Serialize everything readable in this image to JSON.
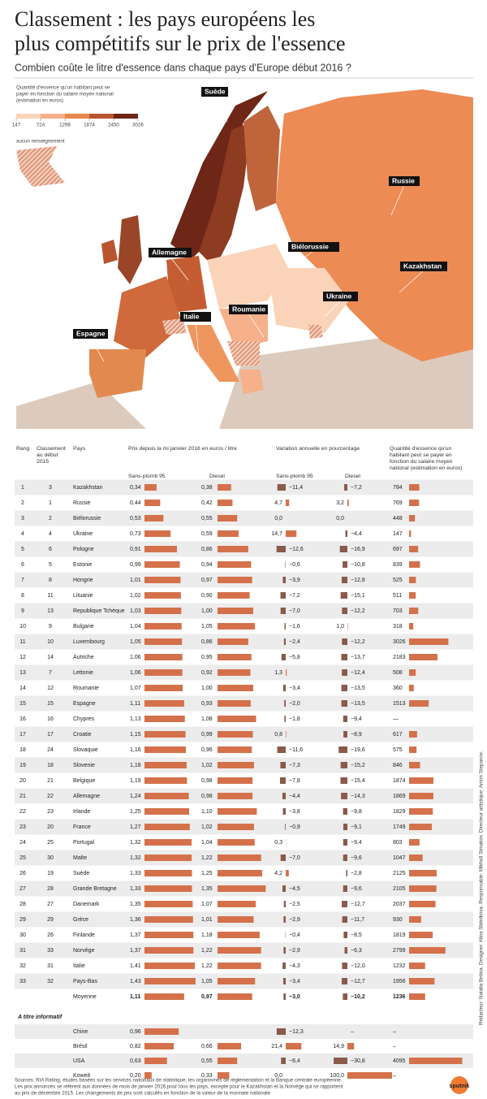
{
  "header": {
    "title": [
      "Classement : les pays européens les",
      "plus compétitifs sur le prix de l'essence"
    ],
    "subtitle": "Combien coûte le litre d'essence dans chaque pays d'Europe début 2016 ?"
  },
  "map": {
    "legend_title": [
      "Quantité d'essence qu'un habitant peut se",
      "payer en fonction du salaire moyen national",
      "(estimation en euros)"
    ],
    "legend_ticks": [
      147,
      724,
      1298,
      1874,
      2450,
      3026
    ],
    "legend_colors": [
      "#fbd3b8",
      "#f6b08a",
      "#e9874f",
      "#b8552e",
      "#6e2617"
    ],
    "no_data": "aucun renseignement",
    "labels": [
      "Suède",
      "Russie",
      "Biélorussie",
      "Allemagne",
      "Kazakhstan",
      "Ukraine",
      "Italie",
      "Roumanie",
      "Espagne"
    ]
  },
  "table": {
    "headers": {
      "rank": [
        "Rang"
      ],
      "rank_2015": [
        "Classement",
        "au début",
        "2015"
      ],
      "country": [
        "Pays"
      ],
      "price": [
        "Prix depuis la mi janvier 2016 en euros / litre"
      ],
      "price_petrol": "Sans-plomb 95",
      "price_diesel": "Diesel",
      "variation": [
        "Variation annuelle en pourcentage"
      ],
      "var_petrol": "Sans-plomb 95",
      "var_diesel": "Diesel",
      "quantity": [
        "Quantité d'essence qu'un",
        "habitant peut se payer en",
        "fonction du salaire moyen",
        "national (estimation en euros)"
      ]
    },
    "bar_color": "#d4714a",
    "rows": [
      {
        "rank": 1,
        "rank_2015": 3,
        "country": "Kazakhstan",
        "values": [
          0.34,
          0.38,
          -11.4,
          -7.2,
          784
        ],
        "value_labels": [
          "0,34",
          "0,38",
          "−11,4",
          "−7,2",
          "784"
        ]
      },
      {
        "rank": 2,
        "rank_2015": 1,
        "country": "Russie",
        "values": [
          0.44,
          0.42,
          4.7,
          3.2,
          769
        ],
        "value_labels": [
          "0,44",
          "0,42",
          "4,7",
          "3,2",
          "769"
        ]
      },
      {
        "rank": 3,
        "rank_2015": 2,
        "country": "Biélorussie",
        "values": [
          0.53,
          0.55,
          0.0,
          0.0,
          448
        ],
        "value_labels": [
          "0,53",
          "0,55",
          "0,0",
          "0,0",
          "448"
        ]
      },
      {
        "rank": 4,
        "rank_2015": 4,
        "country": "Ukraine",
        "values": [
          0.73,
          0.59,
          14.7,
          -4.4,
          147
        ],
        "value_labels": [
          "0,73",
          "0,59",
          "14,7",
          "−4,4",
          "147"
        ]
      },
      {
        "rank": 5,
        "rank_2015": 6,
        "country": "Pologne",
        "values": [
          0.91,
          0.86,
          -12.6,
          -16.9,
          697
        ],
        "value_labels": [
          "0,91",
          "0,86",
          "−12,6",
          "−16,9",
          "697"
        ]
      },
      {
        "rank": 6,
        "rank_2015": 5,
        "country": "Estonie",
        "values": [
          0.99,
          0.94,
          -0.6,
          -10.8,
          839
        ],
        "value_labels": [
          "0,99",
          "0,94",
          "−0,6",
          "−10,8",
          "839"
        ]
      },
      {
        "rank": 7,
        "rank_2015": 8,
        "country": "Hongrie",
        "values": [
          1.01,
          0.97,
          -3.9,
          -12.8,
          525
        ],
        "value_labels": [
          "1,01",
          "0,97",
          "−3,9",
          "−12,8",
          "525"
        ]
      },
      {
        "rank": 8,
        "rank_2015": 11,
        "country": "Lituanie",
        "values": [
          1.02,
          0.9,
          -7.2,
          -15.1,
          511
        ],
        "value_labels": [
          "1,02",
          "0,90",
          "−7,2",
          "−15,1",
          "511"
        ]
      },
      {
        "rank": 9,
        "rank_2015": 13,
        "country": "Republique Tchèque",
        "values": [
          1.03,
          1.0,
          -7.0,
          -12.2,
          703
        ],
        "value_labels": [
          "1,03",
          "1,00",
          "−7,0",
          "−12,2",
          "703"
        ]
      },
      {
        "rank": 10,
        "rank_2015": 9,
        "country": "Bulgarie",
        "values": [
          1.04,
          1.05,
          -1.6,
          1.0,
          318
        ],
        "value_labels": [
          "1,04",
          "1,05",
          "−1,6",
          "1,0",
          "318"
        ]
      },
      {
        "rank": 11,
        "rank_2015": 10,
        "country": "Luxembourg",
        "values": [
          1.05,
          0.86,
          -2.4,
          -12.2,
          3026
        ],
        "value_labels": [
          "1,05",
          "0,86",
          "−2,4",
          "−12,2",
          "3026"
        ]
      },
      {
        "rank": 12,
        "rank_2015": 14,
        "country": "Autriche",
        "values": [
          1.06,
          0.95,
          -5.8,
          -13.7,
          2183
        ],
        "value_labels": [
          "1,06",
          "0,95",
          "−5,8",
          "−13,7",
          "2183"
        ]
      },
      {
        "rank": 13,
        "rank_2015": 7,
        "country": "Lettonie",
        "values": [
          1.06,
          0.92,
          1.3,
          -12.4,
          508
        ],
        "value_labels": [
          "1,06",
          "0,92",
          "1,3",
          "−12,4",
          "508"
        ]
      },
      {
        "rank": 14,
        "rank_2015": 12,
        "country": "Roumanie",
        "values": [
          1.07,
          1.0,
          -3.4,
          -13.5,
          360
        ],
        "value_labels": [
          "1,07",
          "1,00",
          "−3,4",
          "−13,5",
          "360"
        ]
      },
      {
        "rank": 15,
        "rank_2015": 15,
        "country": "Espagne",
        "values": [
          1.11,
          0.93,
          -2.0,
          -13.5,
          1513
        ],
        "value_labels": [
          "1,11",
          "0,93",
          "−2,0",
          "−13,5",
          "1513"
        ]
      },
      {
        "rank": 16,
        "rank_2015": 16,
        "country": "Chypres",
        "values": [
          1.13,
          1.08,
          -1.8,
          -9.4,
          null
        ],
        "value_labels": [
          "1,13",
          "1,08",
          "−1,8",
          "−9,4",
          "—"
        ]
      },
      {
        "rank": 17,
        "rank_2015": 17,
        "country": "Croatie",
        "values": [
          1.15,
          0.99,
          0.8,
          -8.9,
          617
        ],
        "value_labels": [
          "1,15",
          "0,99",
          "0,8",
          "−8,9",
          "617"
        ]
      },
      {
        "rank": 18,
        "rank_2015": 24,
        "country": "Slovaquie",
        "values": [
          1.16,
          0.96,
          -11.6,
          -19.6,
          575
        ],
        "value_labels": [
          "1,16",
          "0,96",
          "−11,6",
          "−19,6",
          "575"
        ]
      },
      {
        "rank": 19,
        "rank_2015": 18,
        "country": "Slovenie",
        "values": [
          1.18,
          1.02,
          -7.3,
          -15.2,
          846
        ],
        "value_labels": [
          "1,18",
          "1,02",
          "−7,3",
          "−15,2",
          "846"
        ]
      },
      {
        "rank": 20,
        "rank_2015": 21,
        "country": "Belgique",
        "values": [
          1.19,
          0.98,
          -7.8,
          -15.4,
          1874
        ],
        "value_labels": [
          "1,19",
          "0,98",
          "−7,8",
          "−15,4",
          "1874"
        ]
      },
      {
        "rank": 21,
        "rank_2015": 22,
        "country": "Allemagne",
        "values": [
          1.24,
          0.98,
          -4.4,
          -14.3,
          1869
        ],
        "value_labels": [
          "1,24",
          "0,98",
          "−4,4",
          "−14,3",
          "1869"
        ]
      },
      {
        "rank": 22,
        "rank_2015": 23,
        "country": "Irlande",
        "values": [
          1.25,
          1.1,
          -3.8,
          -9.8,
          1829
        ],
        "value_labels": [
          "1,25",
          "1,10",
          "−3,8",
          "−9,8",
          "1829"
        ]
      },
      {
        "rank": 23,
        "rank_2015": 20,
        "country": "France",
        "values": [
          1.27,
          1.02,
          -0.9,
          -9.1,
          1749
        ],
        "value_labels": [
          "1,27",
          "1,02",
          "−0,9",
          "−9,1",
          "1749"
        ]
      },
      {
        "rank": 24,
        "rank_2015": 25,
        "country": "Portugal",
        "values": [
          1.32,
          1.04,
          0.3,
          -9.4,
          803
        ],
        "value_labels": [
          "1,32",
          "1,04",
          "0,3",
          "−9,4",
          "803"
        ]
      },
      {
        "rank": 25,
        "rank_2015": 30,
        "country": "Malte",
        "values": [
          1.32,
          1.22,
          -7.0,
          -9.6,
          1047
        ],
        "value_labels": [
          "1,32",
          "1,22",
          "−7,0",
          "−9,6",
          "1047"
        ]
      },
      {
        "rank": 26,
        "rank_2015": 19,
        "country": "Suède",
        "values": [
          1.33,
          1.25,
          4.2,
          -2.8,
          2125
        ],
        "value_labels": [
          "1,33",
          "1,25",
          "4,2",
          "−2,8",
          "2125"
        ]
      },
      {
        "rank": 27,
        "rank_2015": 28,
        "country": "Grande Bretagne",
        "values": [
          1.33,
          1.35,
          -4.5,
          -9.6,
          2105
        ],
        "value_labels": [
          "1,33",
          "1,35",
          "−4,5",
          "−9,6",
          "2105"
        ]
      },
      {
        "rank": 28,
        "rank_2015": 27,
        "country": "Danemark",
        "values": [
          1.35,
          1.07,
          -2.5,
          -12.7,
          2037
        ],
        "value_labels": [
          "1,35",
          "1,07",
          "−2,5",
          "−12,7",
          "2037"
        ]
      },
      {
        "rank": 29,
        "rank_2015": 29,
        "country": "Grèce",
        "values": [
          1.36,
          1.01,
          -2.9,
          -11.7,
          930
        ],
        "value_labels": [
          "1,36",
          "1,01",
          "−2,9",
          "−11,7",
          "930"
        ]
      },
      {
        "rank": 30,
        "rank_2015": 26,
        "country": "Finlande",
        "values": [
          1.37,
          1.18,
          -0.4,
          -8.5,
          1819
        ],
        "value_labels": [
          "1,37",
          "1,18",
          "−0,4",
          "−8,5",
          "1819"
        ]
      },
      {
        "rank": 31,
        "rank_2015": 33,
        "country": "Norvège",
        "values": [
          1.37,
          1.22,
          -2.9,
          -6.3,
          2799
        ],
        "value_labels": [
          "1,37",
          "1,22",
          "−2,9",
          "−6,3",
          "2799"
        ]
      },
      {
        "rank": 32,
        "rank_2015": 31,
        "country": "Italie",
        "values": [
          1.41,
          1.22,
          -4.3,
          -12.0,
          1232
        ],
        "value_labels": [
          "1,41",
          "1,22",
          "−4,3",
          "−12,0",
          "1232"
        ]
      },
      {
        "rank": 33,
        "rank_2015": 32,
        "country": "Pays-Bas",
        "values": [
          1.43,
          1.05,
          -3.4,
          -12.7,
          1956
        ],
        "value_labels": [
          "1,43",
          "1,05",
          "−3,4",
          "−12,7",
          "1956"
        ]
      },
      {
        "rank": null,
        "rank_2015": null,
        "country": "Moyenne",
        "values": [
          1.11,
          0.97,
          -3.0,
          -10.2,
          1236
        ],
        "value_labels": [
          "1,11",
          "0,97",
          "−3,0",
          "−10,2",
          "1236"
        ]
      }
    ],
    "info_title": "A titre informatif",
    "info_rows": [
      {
        "country": "Chine",
        "values": [
          0.96,
          null,
          -12.3,
          null,
          null
        ],
        "value_labels": [
          "0,96",
          null,
          "−12,3",
          "–",
          "–"
        ]
      },
      {
        "country": "Brésil",
        "values": [
          0.82,
          0.66,
          21.4,
          14.9,
          null
        ],
        "value_labels": [
          "0,82",
          "0,66",
          "21,4",
          "14,9",
          "–"
        ]
      },
      {
        "country": "USA",
        "values": [
          0.63,
          0.55,
          -6.4,
          -30.8,
          4095
        ],
        "value_labels": [
          "0,63",
          "0,55",
          "−6,4",
          "−30,8",
          "4095"
        ]
      },
      {
        "country": "Koweit",
        "values": [
          0.2,
          0.33,
          0.0,
          100.0,
          null
        ],
        "value_labels": [
          "0,20",
          "0,33",
          "0,0",
          "100,0",
          "–"
        ]
      }
    ]
  },
  "footer": {
    "sources": [
      "Sources: RIA Rating, études basées sur les services nationaux de statistique, les organismes de réglementation et la Banque centrale européenne.",
      "Les prix annoncés se réfèrent aux données de mois de janvier 2016 pour tous les pays, excepté pour le Kazakhstan et la Norvège qui se rapportent",
      "au prix de décembre 2015. Les changements de prix sont calculés en fonction de la valeur de la monnaie nationale"
    ],
    "credits": "Rédacteur: Natalia Betina. Designer: Alina Sbitnikova. Responsable: Mikhaïl Simakov. Directeur artistique: Anton Stepanov.",
    "logo": "sputnik"
  }
}
